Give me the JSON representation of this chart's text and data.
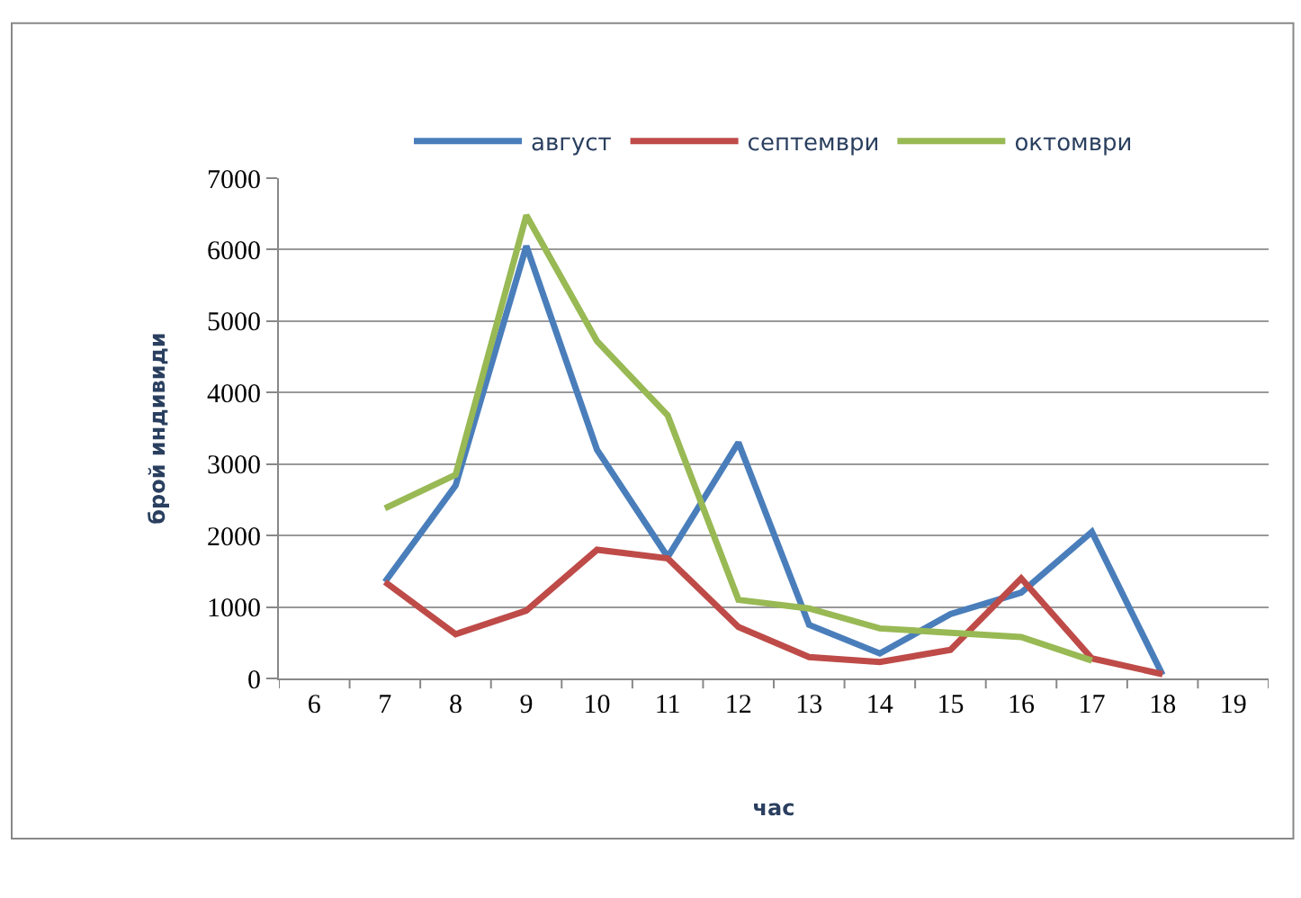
{
  "chart_data": {
    "type": "line",
    "xlabel": "час",
    "ylabel": "брой индивиди",
    "categories": [
      "6",
      "7",
      "8",
      "9",
      "10",
      "11",
      "12",
      "13",
      "14",
      "15",
      "16",
      "17",
      "18",
      "19"
    ],
    "series": [
      {
        "name": "август",
        "color": "#4a7ebb",
        "values": [
          null,
          1350,
          2700,
          6050,
          3200,
          1700,
          3300,
          750,
          350,
          900,
          1200,
          2050,
          50,
          null
        ]
      },
      {
        "name": "септември",
        "color": "#be4b48",
        "values": [
          null,
          1350,
          620,
          950,
          1800,
          1680,
          720,
          300,
          230,
          400,
          1400,
          280,
          60,
          null
        ]
      },
      {
        "name": "октомври",
        "color": "#98b954",
        "values": [
          null,
          2380,
          2850,
          6480,
          4720,
          3680,
          1100,
          980,
          700,
          640,
          580,
          250,
          null,
          null
        ]
      }
    ],
    "ylim": [
      0,
      7000
    ],
    "yticks": [
      0,
      1000,
      2000,
      3000,
      4000,
      5000,
      6000,
      7000
    ],
    "grid": "y",
    "legend": "top",
    "marker": "none",
    "line_style": "solid"
  }
}
